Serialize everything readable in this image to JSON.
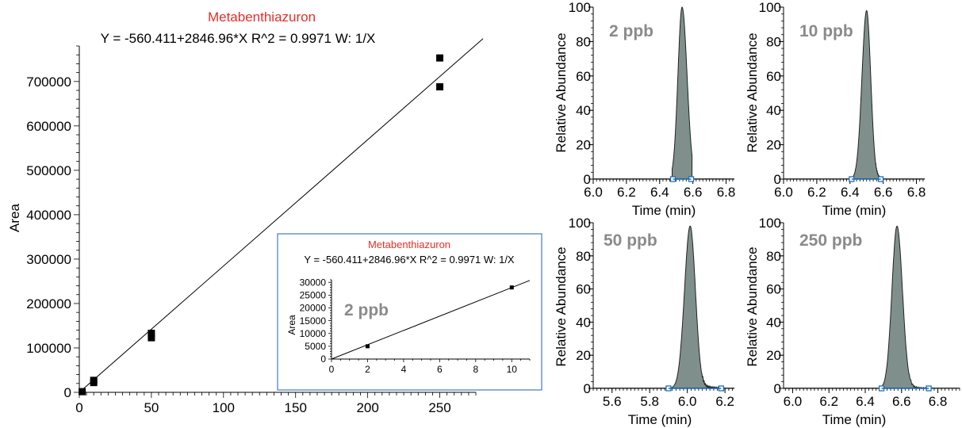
{
  "colors": {
    "title": "#e0302a",
    "peak_fill": "#7f8f8c",
    "peak_stroke": "#222222",
    "marker": "#1f6fb5",
    "inset_border": "#4f86c6",
    "sample_label": "#8a8a8a"
  },
  "chart_data": [
    {
      "id": "calibration",
      "type": "scatter",
      "title": "Metabenthiazuron",
      "subtitle": "Y = -560.411+2846.96*X   R^2 = 0.9971   W: 1/X",
      "xlabel": "",
      "ylabel": "Area",
      "xlim": [
        0,
        275
      ],
      "ylim": [
        0,
        780000
      ],
      "xticks": [
        "0",
        "50",
        "100",
        "150",
        "200",
        "250"
      ],
      "yticks": [
        "0",
        "100000",
        "200000",
        "300000",
        "400000",
        "500000",
        "600000",
        "700000"
      ],
      "fit": {
        "intercept": -560.411,
        "slope": 2846.96,
        "x_range": [
          0,
          280
        ]
      },
      "points": [
        {
          "x": 2,
          "y": 1500
        },
        {
          "x": 10,
          "y": 27000
        },
        {
          "x": 10,
          "y": 22000
        },
        {
          "x": 50,
          "y": 133000
        },
        {
          "x": 50,
          "y": 123000
        },
        {
          "x": 250,
          "y": 753000
        },
        {
          "x": 250,
          "y": 688000
        }
      ]
    },
    {
      "id": "calibration-inset",
      "type": "scatter",
      "title": "Metabenthiazuron",
      "subtitle": "Y = -560.411+2846.96*X   R^2 = 0.9971   W: 1/X",
      "annotation": "2 ppb",
      "xlabel": "",
      "ylabel": "Area",
      "xlim": [
        0,
        11
      ],
      "ylim": [
        0,
        31000
      ],
      "xticks": [
        "0",
        "2",
        "4",
        "6",
        "8",
        "10"
      ],
      "yticks": [
        "0",
        "5000",
        "10000",
        "15000",
        "20000",
        "25000",
        "30000"
      ],
      "fit": {
        "intercept": -560.411,
        "slope": 2846.96,
        "x_range": [
          0,
          11
        ]
      },
      "points": [
        {
          "x": 2,
          "y": 5000
        },
        {
          "x": 10,
          "y": 28000
        }
      ]
    },
    {
      "id": "chrom-2ppb",
      "type": "area",
      "annotation": "2 ppb",
      "xlabel": "Time (min)",
      "ylabel": "Relative Abundance",
      "xlim": [
        6.0,
        6.85
      ],
      "ylim": [
        0,
        100
      ],
      "xticks": [
        "6.0",
        "6.2",
        "6.4",
        "6.6",
        "6.8"
      ],
      "yticks": [
        "0",
        "20",
        "40",
        "60",
        "80",
        "100"
      ],
      "peak": {
        "apex": 6.535,
        "height": 100,
        "width_left": 0.025,
        "width_right": 0.03,
        "start": 6.475,
        "end": 6.595,
        "baseline_noise": 0
      },
      "markers": [
        6.48,
        6.59
      ]
    },
    {
      "id": "chrom-10ppb",
      "type": "area",
      "annotation": "10 ppb",
      "xlabel": "Time (min)",
      "ylabel": "Relative Abundance",
      "xlim": [
        6.0,
        6.85
      ],
      "ylim": [
        0,
        100
      ],
      "xticks": [
        "6.0",
        "6.2",
        "6.4",
        "6.6",
        "6.8"
      ],
      "yticks": [
        "0",
        "20",
        "40",
        "60",
        "80",
        "100"
      ],
      "peak": {
        "apex": 6.5,
        "height": 98,
        "width_left": 0.028,
        "width_right": 0.025,
        "start": 6.41,
        "end": 6.6,
        "baseline_noise": 1
      },
      "markers": [
        6.41,
        6.585
      ]
    },
    {
      "id": "chrom-50ppb",
      "type": "area",
      "annotation": "50 ppb",
      "xlabel": "Time (min)",
      "ylabel": "Relative Abundance",
      "xlim": [
        5.5,
        6.25
      ],
      "ylim": [
        0,
        100
      ],
      "xticks": [
        "5.6",
        "5.8",
        "6.0",
        "6.2"
      ],
      "yticks": [
        "0",
        "20",
        "40",
        "60",
        "80",
        "100"
      ],
      "peak": {
        "apex": 6.015,
        "height": 98,
        "width_left": 0.03,
        "width_right": 0.028,
        "start": 5.9,
        "end": 6.19,
        "baseline_noise": 2
      },
      "markers": [
        5.9,
        6.18
      ]
    },
    {
      "id": "chrom-250ppb",
      "type": "area",
      "annotation": "250 ppb",
      "xlabel": "Time (min)",
      "ylabel": "Relative Abundance",
      "xlim": [
        5.95,
        6.92
      ],
      "ylim": [
        0,
        100
      ],
      "xticks": [
        "6.0",
        "6.2",
        "6.4",
        "6.6",
        "6.8"
      ],
      "yticks": [
        "0",
        "20",
        "40",
        "60",
        "80",
        "100"
      ],
      "peak": {
        "apex": 6.575,
        "height": 98,
        "width_left": 0.028,
        "width_right": 0.03,
        "start": 6.49,
        "end": 6.92,
        "baseline_noise": 1.5
      },
      "markers": [
        6.49,
        6.75
      ]
    }
  ]
}
